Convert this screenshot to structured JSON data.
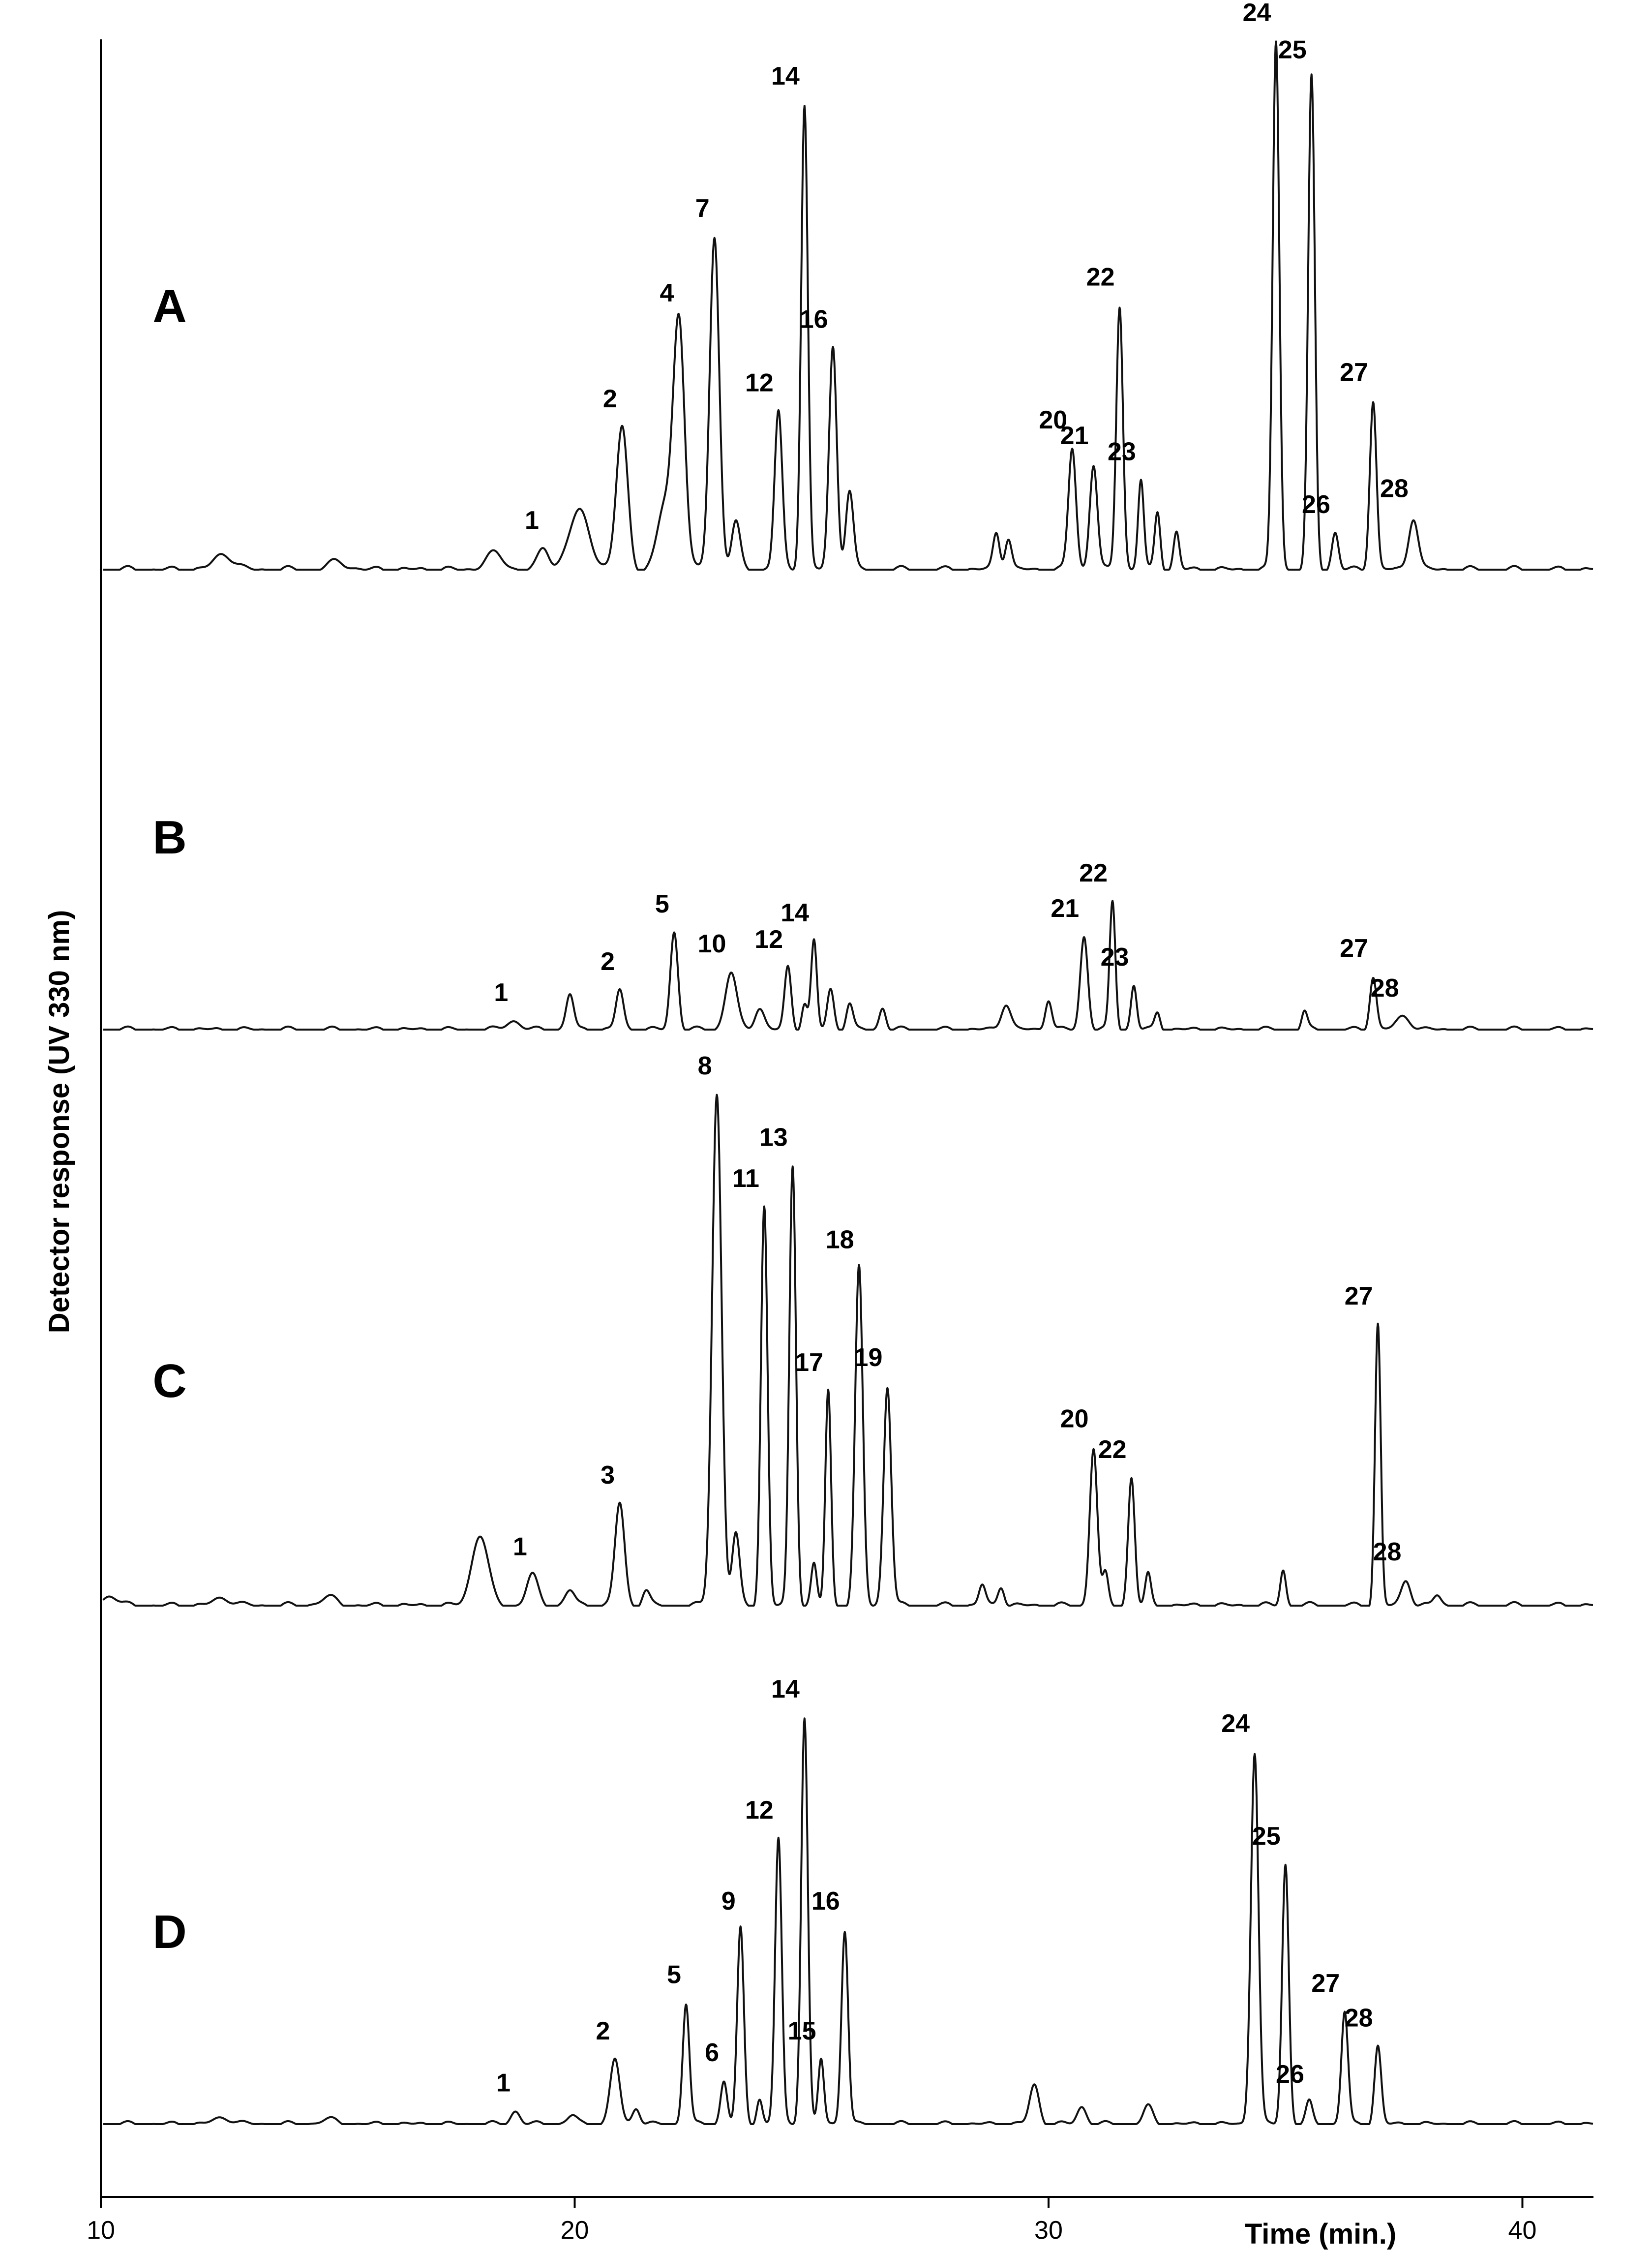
{
  "chart_data": {
    "type": "line",
    "title": "",
    "xlabel": "Time (min.)",
    "ylabel": "Detector response (UV 330 nm)",
    "xlim": [
      10,
      41.5
    ],
    "x_ticks": [
      "10",
      "20",
      "30",
      "40"
    ],
    "grid": false,
    "legend": "none",
    "panels": [
      {
        "name": "A",
        "scale": 1.0,
        "peaks": [
          {
            "label": "",
            "t": 12.6,
            "h": 0.03,
            "w": 0.2
          },
          {
            "label": "",
            "t": 15.0,
            "h": 0.015,
            "w": 0.2
          },
          {
            "label": "",
            "t": 18.3,
            "h": 0.03,
            "w": 0.2
          },
          {
            "label": "1",
            "t": 19.35,
            "h": 0.04,
            "w": 0.12
          },
          {
            "label": "",
            "t": 20.1,
            "h": 0.11,
            "w": 0.22
          },
          {
            "label": "2",
            "t": 21.0,
            "h": 0.27,
            "w": 0.12
          },
          {
            "label": "",
            "t": 21.9,
            "h": 0.12,
            "w": 0.15
          },
          {
            "label": "4",
            "t": 22.2,
            "h": 0.47,
            "w": 0.12
          },
          {
            "label": "7",
            "t": 22.95,
            "h": 0.63,
            "w": 0.1
          },
          {
            "label": "",
            "t": 23.4,
            "h": 0.09,
            "w": 0.09
          },
          {
            "label": "12",
            "t": 24.3,
            "h": 0.3,
            "w": 0.08
          },
          {
            "label": "14",
            "t": 24.85,
            "h": 0.88,
            "w": 0.07
          },
          {
            "label": "16",
            "t": 25.45,
            "h": 0.42,
            "w": 0.08
          },
          {
            "label": "",
            "t": 25.8,
            "h": 0.15,
            "w": 0.08
          },
          {
            "label": "",
            "t": 28.9,
            "h": 0.07,
            "w": 0.07
          },
          {
            "label": "",
            "t": 29.15,
            "h": 0.06,
            "w": 0.07
          },
          {
            "label": "20",
            "t": 30.5,
            "h": 0.23,
            "w": 0.08
          },
          {
            "label": "21",
            "t": 30.95,
            "h": 0.2,
            "w": 0.08
          },
          {
            "label": "22",
            "t": 31.5,
            "h": 0.5,
            "w": 0.07
          },
          {
            "label": "23",
            "t": 31.95,
            "h": 0.17,
            "w": 0.06
          },
          {
            "label": "",
            "t": 32.3,
            "h": 0.11,
            "w": 0.06
          },
          {
            "label": "",
            "t": 32.7,
            "h": 0.07,
            "w": 0.06
          },
          {
            "label": "24",
            "t": 34.8,
            "h": 1.0,
            "w": 0.07
          },
          {
            "label": "25",
            "t": 35.55,
            "h": 0.93,
            "w": 0.07
          },
          {
            "label": "26",
            "t": 36.05,
            "h": 0.07,
            "w": 0.07
          },
          {
            "label": "27",
            "t": 36.85,
            "h": 0.32,
            "w": 0.07
          },
          {
            "label": "28",
            "t": 37.7,
            "h": 0.1,
            "w": 0.1
          }
        ]
      },
      {
        "name": "B",
        "scale": 1.0,
        "peaks": [
          {
            "label": "1",
            "t": 18.7,
            "h": 0.02,
            "w": 0.15
          },
          {
            "label": "",
            "t": 19.9,
            "h": 0.08,
            "w": 0.08
          },
          {
            "label": "2",
            "t": 20.95,
            "h": 0.09,
            "w": 0.08
          },
          {
            "label": "5",
            "t": 22.1,
            "h": 0.22,
            "w": 0.08
          },
          {
            "label": "10",
            "t": 23.3,
            "h": 0.13,
            "w": 0.12
          },
          {
            "label": "",
            "t": 23.9,
            "h": 0.05,
            "w": 0.1
          },
          {
            "label": "12",
            "t": 24.5,
            "h": 0.14,
            "w": 0.07
          },
          {
            "label": "",
            "t": 24.85,
            "h": 0.06,
            "w": 0.06
          },
          {
            "label": "14",
            "t": 25.05,
            "h": 0.2,
            "w": 0.06
          },
          {
            "label": "",
            "t": 25.4,
            "h": 0.09,
            "w": 0.07
          },
          {
            "label": "",
            "t": 25.8,
            "h": 0.06,
            "w": 0.07
          },
          {
            "label": "",
            "t": 26.5,
            "h": 0.05,
            "w": 0.07
          },
          {
            "label": "",
            "t": 29.1,
            "h": 0.06,
            "w": 0.1
          },
          {
            "label": "",
            "t": 30.0,
            "h": 0.07,
            "w": 0.07
          },
          {
            "label": "21",
            "t": 30.75,
            "h": 0.21,
            "w": 0.08
          },
          {
            "label": "22",
            "t": 31.35,
            "h": 0.29,
            "w": 0.06
          },
          {
            "label": "23",
            "t": 31.8,
            "h": 0.1,
            "w": 0.06
          },
          {
            "label": "",
            "t": 32.3,
            "h": 0.04,
            "w": 0.06
          },
          {
            "label": "",
            "t": 35.4,
            "h": 0.04,
            "w": 0.06
          },
          {
            "label": "27",
            "t": 36.85,
            "h": 0.12,
            "w": 0.07
          },
          {
            "label": "28",
            "t": 37.5,
            "h": 0.03,
            "w": 0.15
          }
        ]
      },
      {
        "name": "C",
        "scale": 1.0,
        "peaks": [
          {
            "label": "",
            "t": 10.2,
            "h": 0.02,
            "w": 0.15
          },
          {
            "label": "",
            "t": 12.6,
            "h": 0.015,
            "w": 0.2
          },
          {
            "label": "",
            "t": 14.8,
            "h": 0.015,
            "w": 0.2
          },
          {
            "label": "",
            "t": 18.0,
            "h": 0.14,
            "w": 0.17
          },
          {
            "label": "1",
            "t": 19.1,
            "h": 0.06,
            "w": 0.12
          },
          {
            "label": "",
            "t": 19.9,
            "h": 0.03,
            "w": 0.1
          },
          {
            "label": "3",
            "t": 20.95,
            "h": 0.2,
            "w": 0.1
          },
          {
            "label": "",
            "t": 21.5,
            "h": 0.03,
            "w": 0.08
          },
          {
            "label": "8",
            "t": 23.0,
            "h": 1.0,
            "w": 0.1
          },
          {
            "label": "",
            "t": 23.4,
            "h": 0.14,
            "w": 0.08
          },
          {
            "label": "11",
            "t": 24.0,
            "h": 0.78,
            "w": 0.07
          },
          {
            "label": "13",
            "t": 24.6,
            "h": 0.86,
            "w": 0.07
          },
          {
            "label": "",
            "t": 25.05,
            "h": 0.08,
            "w": 0.06
          },
          {
            "label": "17",
            "t": 25.35,
            "h": 0.42,
            "w": 0.06
          },
          {
            "label": "18",
            "t": 26.0,
            "h": 0.66,
            "w": 0.08
          },
          {
            "label": "19",
            "t": 26.6,
            "h": 0.43,
            "w": 0.08
          },
          {
            "label": "",
            "t": 28.6,
            "h": 0.04,
            "w": 0.07
          },
          {
            "label": "",
            "t": 29.0,
            "h": 0.04,
            "w": 0.07
          },
          {
            "label": "20",
            "t": 30.95,
            "h": 0.31,
            "w": 0.08
          },
          {
            "label": "",
            "t": 31.2,
            "h": 0.06,
            "w": 0.06
          },
          {
            "label": "22",
            "t": 31.75,
            "h": 0.25,
            "w": 0.07
          },
          {
            "label": "",
            "t": 32.1,
            "h": 0.06,
            "w": 0.06
          },
          {
            "label": "",
            "t": 34.95,
            "h": 0.07,
            "w": 0.06
          },
          {
            "label": "27",
            "t": 36.95,
            "h": 0.55,
            "w": 0.06
          },
          {
            "label": "28",
            "t": 37.55,
            "h": 0.05,
            "w": 0.1
          },
          {
            "label": "",
            "t": 38.2,
            "h": 0.02,
            "w": 0.08
          }
        ]
      },
      {
        "name": "D",
        "scale": 1.0,
        "peaks": [
          {
            "label": "",
            "t": 12.6,
            "h": 0.015,
            "w": 0.2
          },
          {
            "label": "",
            "t": 14.8,
            "h": 0.01,
            "w": 0.2
          },
          {
            "label": "1",
            "t": 18.75,
            "h": 0.03,
            "w": 0.1
          },
          {
            "label": "",
            "t": 19.95,
            "h": 0.02,
            "w": 0.1
          },
          {
            "label": "2",
            "t": 20.85,
            "h": 0.15,
            "w": 0.1
          },
          {
            "label": "",
            "t": 21.3,
            "h": 0.04,
            "w": 0.08
          },
          {
            "label": "5",
            "t": 22.35,
            "h": 0.28,
            "w": 0.07
          },
          {
            "label": "6",
            "t": 23.15,
            "h": 0.1,
            "w": 0.07
          },
          {
            "label": "9",
            "t": 23.5,
            "h": 0.45,
            "w": 0.07
          },
          {
            "label": "",
            "t": 23.9,
            "h": 0.06,
            "w": 0.06
          },
          {
            "label": "12",
            "t": 24.3,
            "h": 0.66,
            "w": 0.07
          },
          {
            "label": "14",
            "t": 24.85,
            "h": 0.94,
            "w": 0.07
          },
          {
            "label": "15",
            "t": 25.2,
            "h": 0.15,
            "w": 0.06
          },
          {
            "label": "16",
            "t": 25.7,
            "h": 0.45,
            "w": 0.07
          },
          {
            "label": "",
            "t": 29.7,
            "h": 0.09,
            "w": 0.1
          },
          {
            "label": "",
            "t": 30.7,
            "h": 0.04,
            "w": 0.1
          },
          {
            "label": "",
            "t": 32.1,
            "h": 0.04,
            "w": 0.1
          },
          {
            "label": "24",
            "t": 34.35,
            "h": 0.86,
            "w": 0.08
          },
          {
            "label": "25",
            "t": 35.0,
            "h": 0.6,
            "w": 0.07
          },
          {
            "label": "26",
            "t": 35.5,
            "h": 0.05,
            "w": 0.07
          },
          {
            "label": "27",
            "t": 36.25,
            "h": 0.26,
            "w": 0.07
          },
          {
            "label": "28",
            "t": 36.95,
            "h": 0.18,
            "w": 0.07
          }
        ]
      }
    ]
  }
}
